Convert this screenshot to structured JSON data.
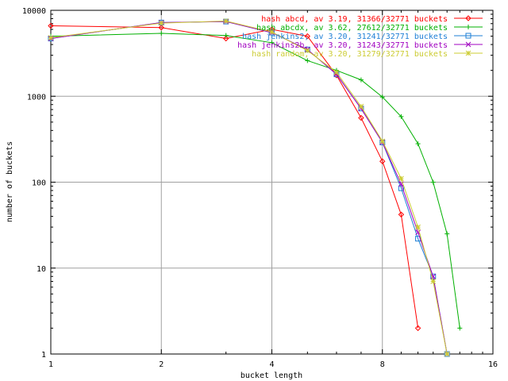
{
  "chart_data": {
    "type": "line",
    "title": "",
    "xlabel": "bucket length",
    "ylabel": "number of buckets",
    "xscale": "log2",
    "yscale": "log10",
    "xlim": [
      1,
      16
    ],
    "ylim": [
      1,
      10000
    ],
    "x_ticks": [
      1,
      2,
      4,
      8,
      16
    ],
    "x_tick_labels": [
      "1",
      "2",
      "4",
      "8",
      "16"
    ],
    "y_ticks": [
      1,
      10,
      100,
      1000,
      10000
    ],
    "y_tick_labels": [
      "1",
      "10",
      "100",
      "1000",
      "10000"
    ],
    "grid": true,
    "legend_position": "top-right",
    "series": [
      {
        "name": "hash abcd, av 3.19, 31366/32771 buckets",
        "color": "#ff0000",
        "marker": "diamond",
        "x": [
          1,
          2,
          3,
          4,
          5,
          6,
          7,
          8,
          9,
          10
        ],
        "y": [
          6600,
          6300,
          4700,
          6000,
          5000,
          1750,
          560,
          175,
          42,
          2
        ]
      },
      {
        "name": "hash abcdx, av 3.62, 27612/32771 buckets",
        "color": "#00b000",
        "marker": "plus",
        "x": [
          1,
          2,
          3,
          4,
          5,
          6,
          7,
          8,
          9,
          10,
          11,
          12,
          13
        ],
        "y": [
          5000,
          5400,
          5100,
          4200,
          2600,
          2000,
          1550,
          980,
          580,
          280,
          100,
          25,
          2
        ]
      },
      {
        "name": "hash jenkins2, av 3.20, 31241/32771 buckets",
        "color": "#1e7fd6",
        "marker": "square",
        "x": [
          1,
          2,
          3,
          4,
          5,
          6,
          7,
          8,
          9,
          10,
          11,
          12
        ],
        "y": [
          4700,
          7200,
          7400,
          5500,
          3500,
          1800,
          720,
          290,
          85,
          22,
          8,
          1
        ]
      },
      {
        "name": "hash jenkins2b, av 3.20, 31243/32771 buckets",
        "color": "#a000c0",
        "marker": "x",
        "x": [
          1,
          2,
          3,
          4,
          5,
          6,
          7,
          8,
          9,
          10,
          11,
          12
        ],
        "y": [
          4700,
          7200,
          7400,
          5500,
          3500,
          1800,
          720,
          290,
          95,
          26,
          8,
          1
        ]
      },
      {
        "name": "hash random, av 3.20, 31279/32771 buckets",
        "color": "#cccc33",
        "marker": "star",
        "x": [
          1,
          2,
          3,
          4,
          5,
          6,
          7,
          8,
          9,
          10,
          11,
          12
        ],
        "y": [
          4800,
          7100,
          7500,
          5600,
          3400,
          1900,
          760,
          300,
          110,
          30,
          7,
          1
        ]
      }
    ]
  }
}
